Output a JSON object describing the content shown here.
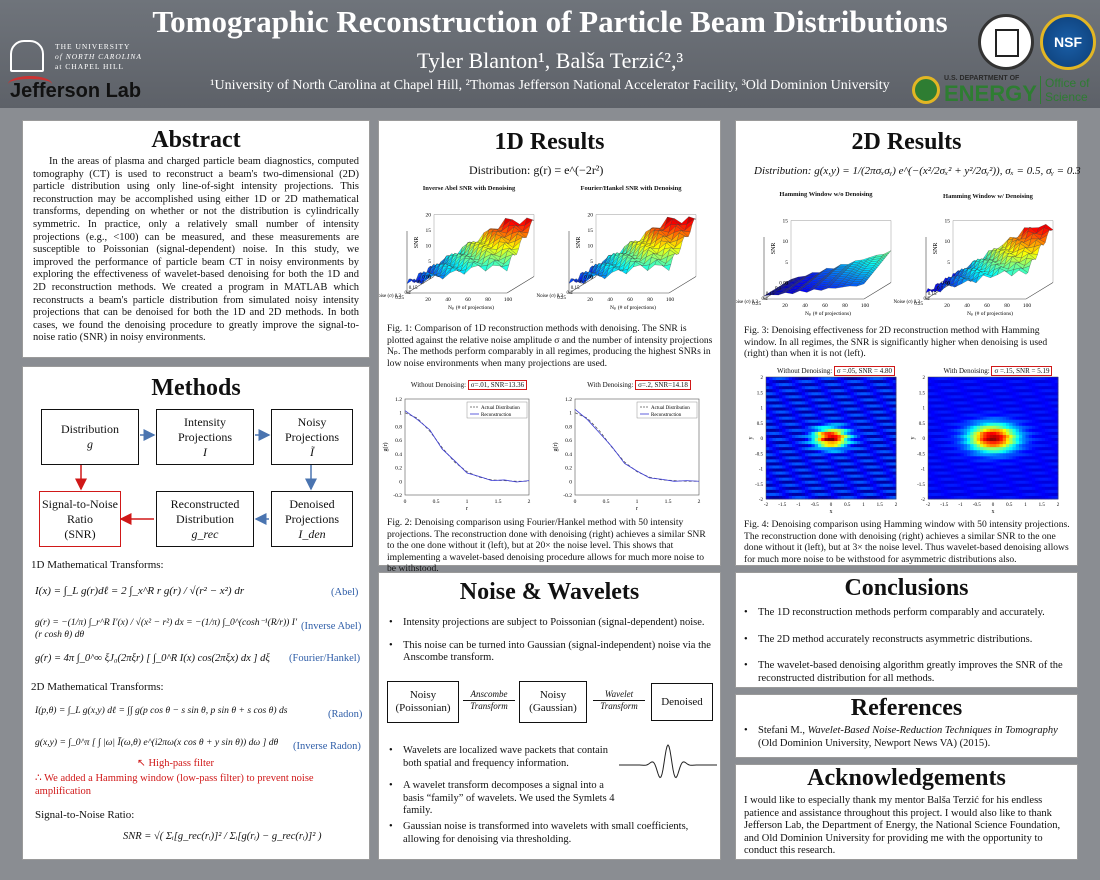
{
  "header": {
    "title": "Tomographic Reconstruction of Particle Beam Distributions",
    "authors": "Tyler Blanton¹, Balša Terzić²,³",
    "affiliations": "¹University of North Carolina at Chapel Hill, ²Thomas Jefferson National Accelerator Facility, ³Old Dominion University",
    "logos": {
      "unc_lines": [
        "THE UNIVERSITY",
        "of NORTH CAROLINA",
        "at CHAPEL HILL"
      ],
      "jlab": "Jefferson Lab",
      "nsf": "NSF",
      "doe_small": "U.S. DEPARTMENT OF",
      "doe_big": "ENERGY",
      "doe_office": "Office of Science"
    }
  },
  "abstract": {
    "heading": "Abstract",
    "body": "In the areas of plasma and charged particle beam diagnostics, computed tomography (CT) is used to reconstruct a beam's two-dimensional (2D) particle distribution using only line-of-sight intensity projections. This reconstruction may be accomplished using either 1D or 2D mathematical transforms, depending on whether or not the distribution is cylindrically symmetric. In practice, only a relatively small number of intensity projections (e.g., <100) can be measured, and these measurements are susceptible to Poissonian (signal-dependent) noise. In this study, we improved the performance of particle beam CT in noisy environments by exploring the effectiveness of wavelet-based denoising for both the 1D and 2D reconstruction methods. We created a program in MATLAB which reconstructs a beam's particle distribution from simulated noisy intensity projections that can be denoised for both the 1D and 2D methods. In both cases, we found the denoising procedure to greatly improve the signal-to-noise ratio (SNR) in noisy environments."
  },
  "methods": {
    "heading": "Methods",
    "flow": {
      "distribution": [
        "Distribution",
        "g"
      ],
      "intensity": [
        "Intensity",
        "Projections",
        "I"
      ],
      "noisy": [
        "Noisy",
        "Projections",
        "Ĩ"
      ],
      "snr": [
        "Signal-to-Noise",
        "Ratio",
        "(SNR)"
      ],
      "recon": [
        "Reconstructed",
        "Distribution",
        "g_rec"
      ],
      "denoised": [
        "Denoised",
        "Projections",
        "I_den"
      ]
    },
    "label_1d": "1D Mathematical Transforms:",
    "eq_abel": "I(x) = ∫_L g(r)dℓ = 2 ∫_x^R r g(r) / √(r² − x²) dr",
    "tag_abel": "(Abel)",
    "eq_inv_abel": "g(r) = −(1/π) ∫_r^R I′(x) / √(x² − r²) dx = −(1/π) ∫_0^(cosh⁻¹(R/r)) I′(r cosh θ) dθ",
    "tag_inv_abel": "(Inverse Abel)",
    "eq_fh": "g(r) = 4π ∫_0^∞ ξJ₀(2πξr) [ ∫_0^R I(x) cos(2πξx) dx ] dξ",
    "tag_fh": "(Fourier/Hankel)",
    "label_2d": "2D Mathematical Transforms:",
    "eq_radon": "I(p,θ) = ∫_L g(x,y) dℓ = ∫∫ g(p cos θ − s sin θ, p sin θ + s cos θ) ds",
    "tag_radon": "(Radon)",
    "eq_inv_radon": "g(x,y) = ∫_0^π [ ∫ |ω| Ĩ(ω,θ) e^(i2πω(x cos θ + y sin θ)) dω ] dθ",
    "tag_inv_radon": "(Inverse Radon)",
    "highpass": "High-pass filter",
    "hamming_note": "∴ We added a Hamming window (low-pass filter) to prevent noise amplification",
    "snr_label": "Signal-to-Noise Ratio:",
    "snr_eq": "SNR = √( Σᵢ[g_rec(rᵢ)]² / Σᵢ[g(rᵢ) − g_rec(rᵢ)]² )"
  },
  "results1d": {
    "heading": "1D Results",
    "distribution": "Distribution:   g(r) = e^(−2r²)",
    "fig1_left_title": "Inverse Abel SNR with Denoising",
    "fig1_right_title": "Fourier/Hankel SNR with Denoising",
    "fig1_caption": "Fig. 1: Comparison of 1D reconstruction methods with denoising. The SNR is plotted against the relative noise amplitude σ and the number of intensity projections Nₚ. The methods perform comparably in all regimes, producing the highest SNRs in low noise environments when many projections are used.",
    "fig2_left_title": "Without Denoising:",
    "fig2_left_box": "σ=.01, SNR=13.36",
    "fig2_right_title": "With Denoising:",
    "fig2_right_box": "σ=.2, SNR=14.18",
    "legend_actual": "Actual Distribution",
    "legend_recon": "Reconstruction",
    "fig2_caption": "Fig. 2: Denoising comparison using Fourier/Hankel method with 50 intensity projections. The reconstruction done with denoising (right) achieves a similar SNR to the one done without it (left), but at 20× the noise level. This shows that implementing a wavelet-based denoising procedure allows for much more noise to be withstood."
  },
  "results2d": {
    "heading": "2D Results",
    "distribution": "Distribution:  g(x,y) = 1/(2πσₓσᵧ) e^(−(x²/2σₓ² + y²/2σᵧ²)),    σₓ = 0.5,  σᵧ = 0.3",
    "fig3_left_title": "Hamming Window w/o Denoising",
    "fig3_right_title": "Hamming Window w/ Denoising",
    "fig3_caption": "Fig. 3: Denoising effectiveness for 2D reconstruction method with Hamming window. In all regimes, the SNR is significantly higher when denoising is used (right) than when it is not (left).",
    "fig4_left_title": "Without Denoising:",
    "fig4_left_box": "σ =.05, SNR = 4.80",
    "fig4_right_title": "With Denoising:",
    "fig4_right_box": "σ =.15, SNR = 5.19",
    "fig4_caption": "Fig. 4: Denoising comparison using Hamming window with 50 intensity projections. The reconstruction done with denoising (right) achieves a similar SNR to the one done without it (left), but at 3× the noise level. Thus wavelet-based denoising allows for much more noise to be withstood for asymmetric distributions also."
  },
  "noise": {
    "heading": "Noise & Wavelets",
    "b1": "Intensity projections are subject to Poissonian (signal-dependent) noise.",
    "b2": "This noise can be turned into Gaussian (signal-independent) noise via the Anscombe transform.",
    "flow_a": [
      "Noisy",
      "(Poissonian)"
    ],
    "flow_arrow1": [
      "Anscombe",
      "Transform"
    ],
    "flow_b": [
      "Noisy",
      "(Gaussian)"
    ],
    "flow_arrow2": [
      "Wavelet",
      "Transform"
    ],
    "flow_c": "Denoised",
    "b3": "Wavelets are localized wave packets that contain both spatial and frequency information.",
    "b4": "A wavelet transform decomposes a signal into a basis “family” of wavelets. We used the Symlets 4 family.",
    "b5": "Gaussian noise is transformed into wavelets with small coefficients, allowing for denoising via thresholding."
  },
  "conclusions": {
    "heading": "Conclusions",
    "items": [
      "The 1D reconstruction methods perform comparably and accurately.",
      "The 2D method accurately reconstructs asymmetric distributions.",
      "The wavelet-based denoising algorithm greatly improves the SNR of the reconstructed distribution for all methods."
    ]
  },
  "references": {
    "heading": "References",
    "item_author": "Stefani M., ",
    "item_title": "Wavelet-Based Noise-Reduction Techniques in Tomography",
    "item_rest": " (Old Dominion University, Newport News VA) (2015)."
  },
  "acknowledgements": {
    "heading": "Acknowledgements",
    "body": "I would like to especially thank my mentor Balša Terzić for his endless patience and assistance throughout this project. I would also like to thank Jefferson Lab, the Department of Energy, the National Science Foundation, and Old Dominion University for providing me with the opportunity to conduct this research."
  },
  "chart_data": [
    {
      "type": "line",
      "title": "Inverse Abel SNR with Denoising",
      "xlabel": "Nₚ (# of projections)",
      "ylabel": "SNR",
      "zticks": [
        "0",
        "5",
        "10",
        "15",
        "20"
      ],
      "noise_ticks": [
        "0.05",
        "0.1",
        "0.15",
        "0.2",
        "0.25"
      ],
      "np_ticks": [
        "20",
        "40",
        "60",
        "80",
        "100"
      ]
    },
    {
      "type": "line",
      "title": "Fourier/Hankel SNR with Denoising",
      "xlabel": "Nₚ (# of projections)",
      "ylabel": "SNR",
      "zticks": [
        "0",
        "5",
        "10",
        "15",
        "20"
      ],
      "noise_ticks": [
        "0.05",
        "0.1",
        "0.15",
        "0.2",
        "0.25"
      ],
      "np_ticks": [
        "20",
        "40",
        "60",
        "80",
        "100"
      ]
    },
    {
      "type": "line",
      "title": "Without Denoising:",
      "xlabel": "r",
      "ylabel": "g(r)",
      "xlim": [
        0,
        2
      ],
      "ylim": [
        -0.2,
        1.2
      ],
      "x": [
        0,
        0.2,
        0.4,
        0.6,
        0.8,
        1.0,
        1.2,
        1.4,
        1.6,
        1.8,
        2.0
      ],
      "series": [
        {
          "name": "Actual Distribution",
          "values": [
            1,
            0.92,
            0.73,
            0.49,
            0.28,
            0.14,
            0.06,
            0.02,
            0.01,
            0,
            0
          ]
        },
        {
          "name": "Reconstruction",
          "values": [
            1.03,
            0.9,
            0.75,
            0.47,
            0.3,
            0.12,
            0.07,
            0.01,
            0.02,
            -0.01,
            0.01
          ]
        }
      ]
    },
    {
      "type": "line",
      "title": "With Denoising:",
      "xlabel": "r",
      "ylabel": "g(r)",
      "xlim": [
        0,
        2
      ],
      "ylim": [
        -0.2,
        1.2
      ],
      "x": [
        0,
        0.2,
        0.4,
        0.6,
        0.8,
        1.0,
        1.2,
        1.4,
        1.6,
        1.8,
        2.0
      ],
      "series": [
        {
          "name": "Actual Distribution",
          "values": [
            1,
            0.92,
            0.73,
            0.49,
            0.28,
            0.14,
            0.06,
            0.02,
            0.01,
            0,
            0
          ]
        },
        {
          "name": "Reconstruction",
          "values": [
            1.05,
            0.9,
            0.7,
            0.5,
            0.26,
            0.15,
            0.05,
            0.03,
            0,
            0.01,
            0
          ]
        }
      ]
    },
    {
      "type": "line",
      "title": "Hamming Window w/o Denoising",
      "xlabel": "Nₚ (# of projections)",
      "ylabel": "SNR",
      "zticks": [
        "0",
        "5",
        "10",
        "15"
      ],
      "noise_ticks": [
        "0.05",
        "0.1",
        "0.15",
        "0.2",
        "0.25"
      ],
      "np_ticks": [
        "20",
        "40",
        "60",
        "80",
        "100"
      ]
    },
    {
      "type": "line",
      "title": "Hamming Window w/ Denoising",
      "xlabel": "Nₚ (# of projections)",
      "ylabel": "SNR",
      "zticks": [
        "0",
        "5",
        "10",
        "15"
      ],
      "noise_ticks": [
        "0.05",
        "0.1",
        "0.15",
        "0.2",
        "0.25"
      ],
      "np_ticks": [
        "20",
        "40",
        "60",
        "80",
        "100"
      ]
    },
    {
      "type": "heatmap",
      "title": "Without Denoising:",
      "xlabel": "x",
      "ylabel": "y",
      "xticks": [
        "-2",
        "-1.5",
        "-1",
        "-0.5",
        "0",
        "0.5",
        "1",
        "1.5",
        "2"
      ],
      "yticks": [
        "2",
        "1.5",
        "1",
        "0.5",
        "0",
        "-0.5",
        "-1",
        "-1.5",
        "-2"
      ]
    },
    {
      "type": "heatmap",
      "title": "With Denoising:",
      "xlabel": "x",
      "ylabel": "y",
      "xticks": [
        "-2",
        "-1.5",
        "-1",
        "-0.5",
        "0",
        "0.5",
        "1",
        "1.5",
        "2"
      ],
      "yticks": [
        "2",
        "1.5",
        "1",
        "0.5",
        "0",
        "-0.5",
        "-1",
        "-1.5",
        "-2"
      ]
    }
  ]
}
